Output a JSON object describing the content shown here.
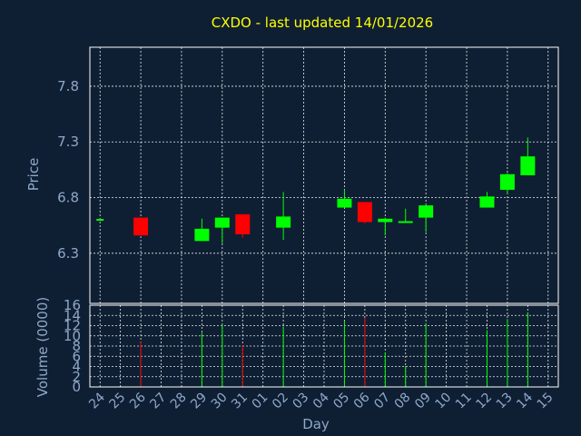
{
  "chart_data": {
    "type": "candlestick",
    "title": "CXDO - last updated 14/01/2026",
    "xlabel": "Day",
    "ylabel": "Price",
    "volume_label": "Volume (0000)",
    "x_ticks": [
      "24",
      "25",
      "26",
      "27",
      "28",
      "29",
      "30",
      "31",
      "01",
      "02",
      "03",
      "04",
      "05",
      "06",
      "07",
      "08",
      "09",
      "10",
      "11",
      "12",
      "13",
      "14",
      "15"
    ],
    "price_ticks": [
      "7.8",
      "7.3",
      "6.8",
      "6.3"
    ],
    "volume_ticks": [
      "16",
      "14",
      "12",
      "10",
      "8",
      "6",
      "4",
      "2",
      "0"
    ],
    "price_ylim": [
      5.85,
      8.15
    ],
    "volume_ylim": [
      0,
      16
    ],
    "grid": true,
    "colors": {
      "up": "#00ff00",
      "down": "#ff0000",
      "title": "#ffff00",
      "text": "#8ea8c8",
      "background": "#0f1f33"
    },
    "candles": [
      {
        "day": "24",
        "open": 6.6,
        "high": 6.6,
        "low": 6.6,
        "close": 6.6,
        "volume": 0
      },
      {
        "day": "26",
        "open": 6.62,
        "high": 6.62,
        "low": 6.46,
        "close": 6.46,
        "volume": 8.8
      },
      {
        "day": "29",
        "open": 6.41,
        "high": 6.61,
        "low": 6.41,
        "close": 6.52,
        "volume": 10.6
      },
      {
        "day": "30",
        "open": 6.53,
        "high": 6.62,
        "low": 6.39,
        "close": 6.62,
        "volume": 12.2
      },
      {
        "day": "31",
        "open": 6.65,
        "high": 6.65,
        "low": 6.44,
        "close": 6.47,
        "volume": 8.2
      },
      {
        "day": "02",
        "open": 6.53,
        "high": 6.85,
        "low": 6.42,
        "close": 6.63,
        "volume": 11.8
      },
      {
        "day": "05",
        "open": 6.71,
        "high": 6.87,
        "low": 6.71,
        "close": 6.79,
        "volume": 12.9
      },
      {
        "day": "06",
        "open": 6.76,
        "high": 6.76,
        "low": 6.57,
        "close": 6.58,
        "volume": 13.5
      },
      {
        "day": "07",
        "open": 6.58,
        "high": 6.62,
        "low": 6.46,
        "close": 6.61,
        "volume": 6.8
      },
      {
        "day": "08",
        "open": 6.58,
        "high": 6.7,
        "low": 6.58,
        "close": 6.58,
        "volume": 4.1
      },
      {
        "day": "09",
        "open": 6.62,
        "high": 6.74,
        "low": 6.49,
        "close": 6.73,
        "volume": 12.5
      },
      {
        "day": "12",
        "open": 6.71,
        "high": 6.85,
        "low": 6.71,
        "close": 6.81,
        "volume": 11.1
      },
      {
        "day": "13",
        "open": 6.87,
        "high": 7.02,
        "low": 6.83,
        "close": 7.01,
        "volume": 13.3
      },
      {
        "day": "14",
        "open": 7.0,
        "high": 7.34,
        "low": 7.0,
        "close": 7.17,
        "volume": 14.5
      }
    ]
  }
}
